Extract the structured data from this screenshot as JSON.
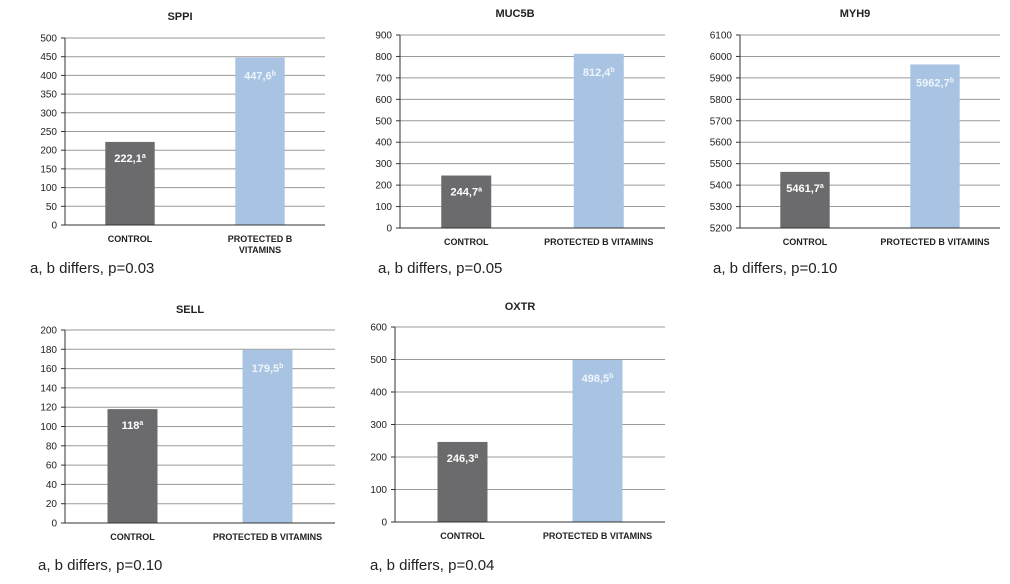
{
  "colors": {
    "control": "#6b6b6d",
    "treated": "#a9c4e3",
    "label_on_control": "#ffffff",
    "label_on_treated": "#eef4fb",
    "grid": "#9a9a9a"
  },
  "chart_data": [
    {
      "type": "bar",
      "title": "SPPI",
      "categories": [
        "CONTROL",
        "PROTECTED B VITAMINS"
      ],
      "category_lines": [
        [
          "CONTROL"
        ],
        [
          "PROTECTED B",
          "VITAMINS"
        ]
      ],
      "values": [
        222.1,
        447.6
      ],
      "value_labels": [
        "222,1",
        "447,6"
      ],
      "superscripts": [
        "a",
        "b"
      ],
      "yticks": [
        0,
        50,
        100,
        150,
        200,
        250,
        300,
        350,
        400,
        450,
        500
      ],
      "ylim": [
        0,
        500
      ],
      "note": "a, b differs, p=0.03"
    },
    {
      "type": "bar",
      "title": "MUC5B",
      "categories": [
        "CONTROL",
        "PROTECTED B VITAMINS"
      ],
      "category_lines": [
        [
          "CONTROL"
        ],
        [
          "PROTECTED B VITAMINS"
        ]
      ],
      "values": [
        244.7,
        812.4
      ],
      "value_labels": [
        "244,7",
        "812,4"
      ],
      "superscripts": [
        "a",
        "b"
      ],
      "yticks": [
        0,
        100,
        200,
        300,
        400,
        500,
        600,
        700,
        800,
        900
      ],
      "ylim": [
        0,
        900
      ],
      "note": "a, b differs, p=0.05"
    },
    {
      "type": "bar",
      "title": "MYH9",
      "categories": [
        "CONTROL",
        "PROTECTED B VITAMINS"
      ],
      "category_lines": [
        [
          "CONTROL"
        ],
        [
          "PROTECTED B VITAMINS"
        ]
      ],
      "values": [
        5461.7,
        5962.7
      ],
      "value_labels": [
        "5461,7",
        "5962,7"
      ],
      "superscripts": [
        "a",
        "b"
      ],
      "yticks": [
        5200,
        5300,
        5400,
        5500,
        5600,
        5700,
        5800,
        5900,
        6000,
        6100
      ],
      "ylim": [
        5200,
        6100
      ],
      "note": "a, b differs, p=0.10"
    },
    {
      "type": "bar",
      "title": "SELL",
      "categories": [
        "CONTROL",
        "PROTECTED B VITAMINS"
      ],
      "category_lines": [
        [
          "CONTROL"
        ],
        [
          "PROTECTED B VITAMINS"
        ]
      ],
      "values": [
        118,
        179.5
      ],
      "value_labels": [
        "118",
        "179,5"
      ],
      "superscripts": [
        "a",
        "b"
      ],
      "yticks": [
        0,
        20,
        40,
        60,
        80,
        100,
        120,
        140,
        160,
        180,
        200
      ],
      "ylim": [
        0,
        200
      ],
      "note": "a, b differs, p=0.10"
    },
    {
      "type": "bar",
      "title": "OXTR",
      "categories": [
        "CONTROL",
        "PROTECTED B VITAMINS"
      ],
      "category_lines": [
        [
          "CONTROL"
        ],
        [
          "PROTECTED B VITAMINS"
        ]
      ],
      "values": [
        246.3,
        498.5
      ],
      "value_labels": [
        "246,3",
        "498,5"
      ],
      "superscripts": [
        "a",
        "b"
      ],
      "yticks": [
        0,
        100,
        200,
        300,
        400,
        500,
        600
      ],
      "ylim": [
        0,
        600
      ],
      "note": "a, b differs, p=0.04"
    }
  ]
}
